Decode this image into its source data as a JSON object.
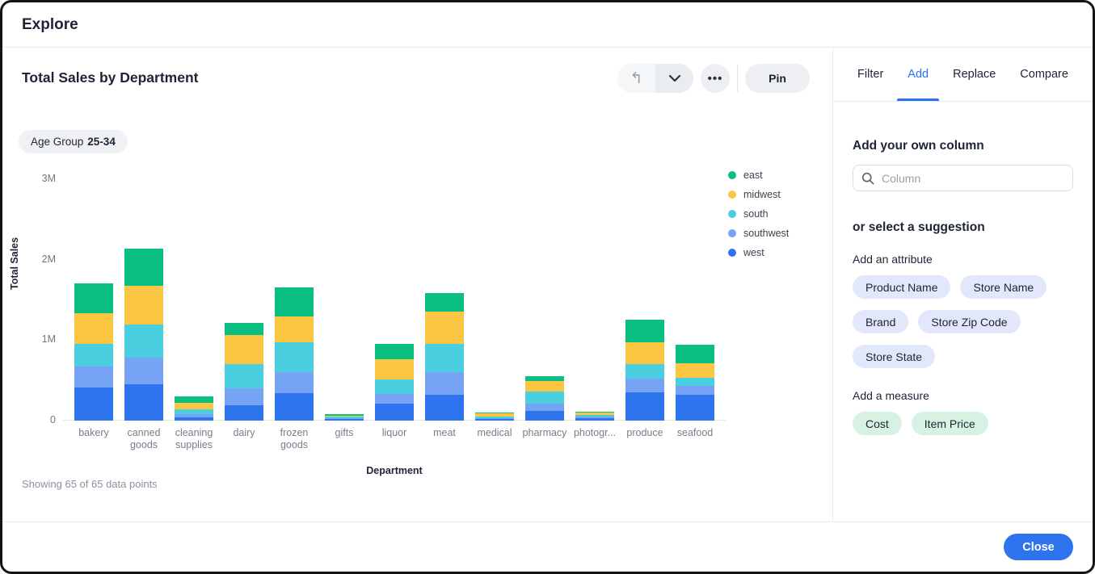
{
  "header": {
    "title": "Explore"
  },
  "chart_panel": {
    "title": "Total Sales by Department",
    "toolbar": {
      "undo_icon": "undo",
      "chevron_icon": "chevron-down",
      "more_icon": "•••",
      "pin_label": "Pin"
    },
    "filter_chip": {
      "label": "Age Group",
      "value": "25-34"
    },
    "footnote": "Showing 65 of 65 data points"
  },
  "chart_data": {
    "type": "bar",
    "stacked": true,
    "title": "Total Sales by Department",
    "xlabel": "Department",
    "ylabel": "Total Sales",
    "ylim": [
      0,
      3000000
    ],
    "grid": false,
    "legend_position": "right",
    "yticks": [
      {
        "label": "3M",
        "value": 3000000
      },
      {
        "label": "2M",
        "value": 2000000
      },
      {
        "label": "1M",
        "value": 1000000
      },
      {
        "label": "0",
        "value": 0
      }
    ],
    "categories": [
      "bakery",
      "canned goods",
      "cleaning supplies",
      "dairy",
      "frozen goods",
      "gifts",
      "liquor",
      "meat",
      "medical",
      "pharmacy",
      "photogr...",
      "produce",
      "seafood"
    ],
    "series": [
      {
        "name": "east",
        "color": "#0abf80",
        "values": [
          380000,
          460000,
          80000,
          150000,
          370000,
          15000,
          190000,
          240000,
          10000,
          60000,
          10000,
          280000,
          230000
        ]
      },
      {
        "name": "midwest",
        "color": "#fbc642",
        "values": [
          380000,
          490000,
          80000,
          360000,
          320000,
          15000,
          250000,
          400000,
          35000,
          130000,
          30000,
          270000,
          180000
        ]
      },
      {
        "name": "south",
        "color": "#49cfdf",
        "values": [
          280000,
          410000,
          60000,
          300000,
          370000,
          15000,
          180000,
          350000,
          20000,
          150000,
          20000,
          180000,
          100000
        ]
      },
      {
        "name": "southwest",
        "color": "#76a3f3",
        "values": [
          260000,
          330000,
          40000,
          210000,
          260000,
          10000,
          120000,
          280000,
          10000,
          90000,
          15000,
          170000,
          110000
        ]
      },
      {
        "name": "west",
        "color": "#2e74ee",
        "values": [
          410000,
          450000,
          40000,
          190000,
          340000,
          25000,
          210000,
          320000,
          25000,
          120000,
          35000,
          350000,
          320000
        ]
      }
    ]
  },
  "side_panel": {
    "tabs": [
      {
        "label": "Filter",
        "active": false
      },
      {
        "label": "Add",
        "active": true
      },
      {
        "label": "Replace",
        "active": false
      },
      {
        "label": "Compare",
        "active": false
      }
    ],
    "add_column_heading": "Add your own column",
    "search": {
      "placeholder": "Column",
      "value": "",
      "icon": "search-icon"
    },
    "suggestion_heading": "or select a suggestion",
    "attribute_heading": "Add an attribute",
    "attribute_chips": [
      "Product Name",
      "Store Name",
      "Brand",
      "Store Zip Code",
      "Store State"
    ],
    "measure_heading": "Add a measure",
    "measure_chips": [
      "Cost",
      "Item Price"
    ]
  },
  "footer": {
    "close_label": "Close"
  },
  "colors": {
    "accent_blue": "#2770ef",
    "button_gray": "#edeff2",
    "attr_chip_bg": "#e2e7fb",
    "measure_chip_bg": "#d7f2e3"
  }
}
